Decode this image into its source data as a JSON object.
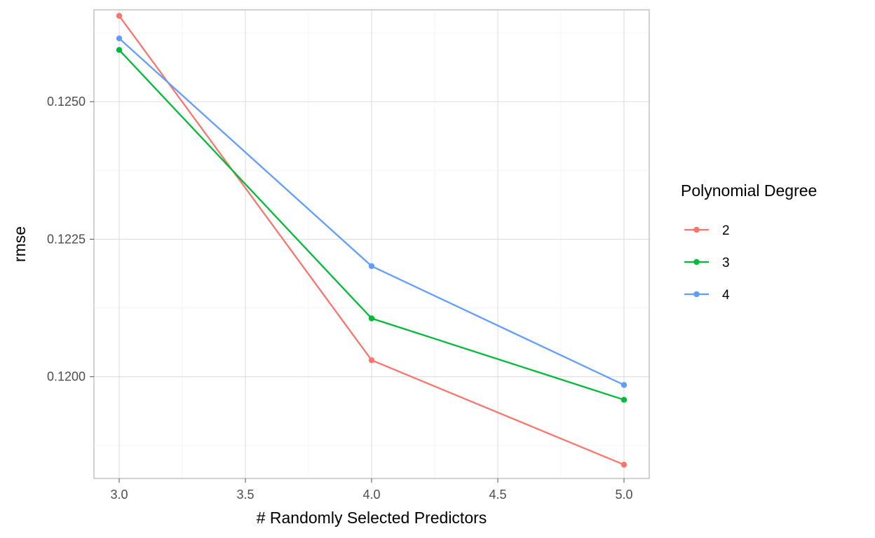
{
  "chart_data": {
    "type": "line",
    "title": "",
    "xlabel": "# Randomly Selected Predictors",
    "ylabel": "rmse",
    "x": [
      3.0,
      4.0,
      5.0
    ],
    "xlim": [
      2.9,
      5.1
    ],
    "ylim": [
      0.11815,
      0.12667
    ],
    "x_ticks": [
      3.0,
      3.5,
      4.0,
      4.5,
      5.0
    ],
    "x_tick_labels": [
      "3.0",
      "3.5",
      "4.0",
      "4.5",
      "5.0"
    ],
    "y_ticks": [
      0.12,
      0.1225,
      0.125
    ],
    "y_tick_labels": [
      "0.1200",
      "0.1225",
      "0.1250"
    ],
    "grid": true,
    "legend": {
      "title": "Polynomial Degree",
      "position": "right"
    },
    "series": [
      {
        "name": "2",
        "color": "#F8766D",
        "values": [
          0.12656,
          0.1203,
          0.1184
        ]
      },
      {
        "name": "3",
        "color": "#00BA38",
        "values": [
          0.12594,
          0.12106,
          0.11958
        ]
      },
      {
        "name": "4",
        "color": "#619CFF",
        "values": [
          0.12615,
          0.12201,
          0.11985
        ]
      }
    ]
  }
}
